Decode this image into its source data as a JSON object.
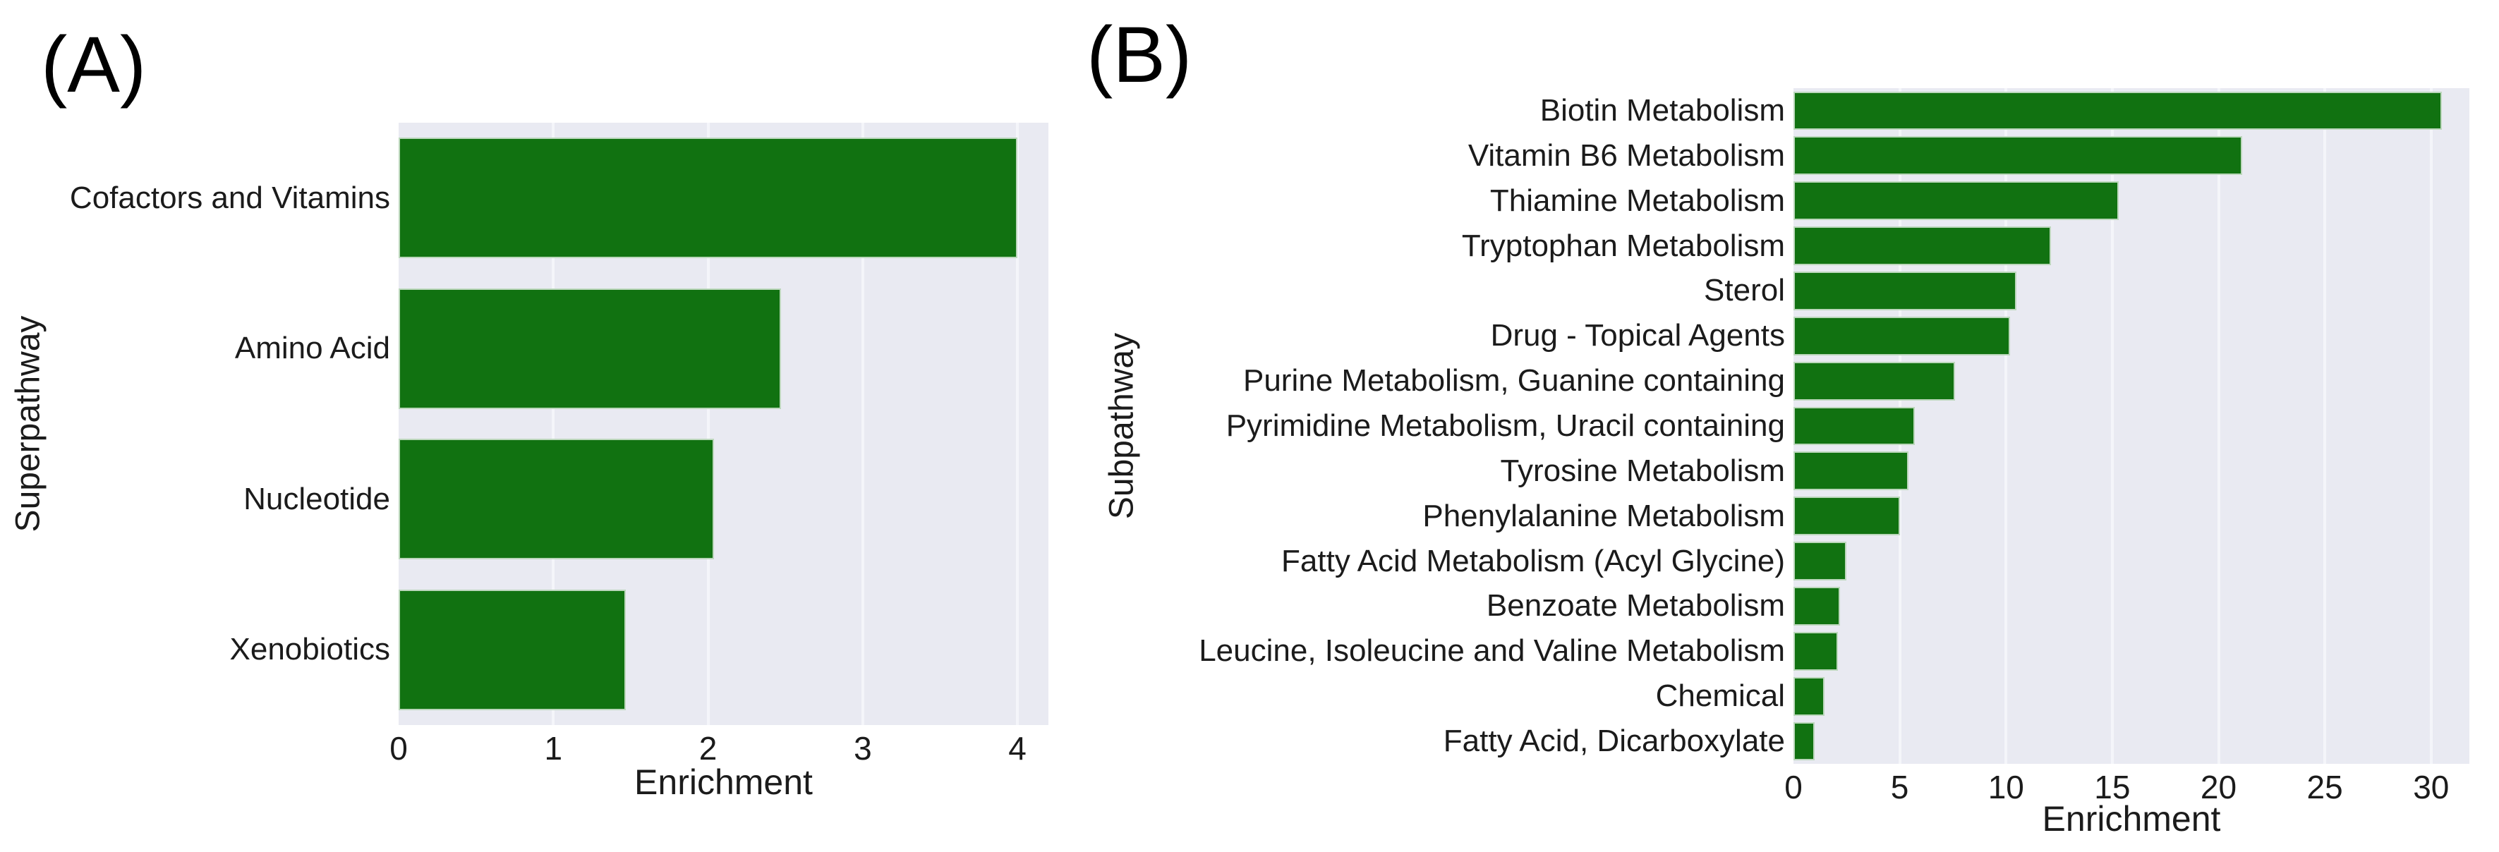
{
  "colors": {
    "bar": "#117211",
    "bar_edge": "rgba(246,250,246,0.75)",
    "plot_bg": "#e9eaf2",
    "grid_line": "#f4f5fa",
    "text": "#1b1b1b",
    "page_bg": "#ffffff"
  },
  "chart_data": [
    {
      "type": "bar",
      "orientation": "horizontal",
      "panel_label": "(A)",
      "title": "",
      "xlabel": "Enrichment",
      "ylabel": "Superpathway",
      "categories": [
        "Cofactors and Vitamins",
        "Amino Acid",
        "Nucleotide",
        "Xenobiotics"
      ],
      "values": [
        4.0,
        2.47,
        2.04,
        1.47
      ],
      "x_ticks": [
        0,
        1,
        2,
        3,
        4
      ],
      "xlim": [
        0,
        4.2
      ],
      "grid": true,
      "legend": false
    },
    {
      "type": "bar",
      "orientation": "horizontal",
      "panel_label": "(B)",
      "title": "",
      "xlabel": "Enrichment",
      "ylabel": "Subpathway",
      "categories": [
        "Biotin Metabolism",
        "Vitamin B6 Metabolism",
        "Thiamine Metabolism",
        "Tryptophan Metabolism",
        "Sterol",
        "Drug - Topical Agents",
        "Purine Metabolism, Guanine containing",
        "Pyrimidine Metabolism, Uracil containing",
        "Tyrosine Metabolism",
        "Phenylalanine Metabolism",
        "Fatty Acid Metabolism (Acyl Glycine)",
        "Benzoate Metabolism",
        "Leucine, Isoleucine and Valine Metabolism",
        "Chemical",
        "Fatty Acid, Dicarboxylate"
      ],
      "values": [
        30.5,
        21.1,
        15.3,
        12.1,
        10.5,
        10.2,
        7.6,
        5.7,
        5.4,
        5.0,
        2.5,
        2.2,
        2.1,
        1.45,
        1.0
      ],
      "x_ticks": [
        0,
        5,
        10,
        15,
        20,
        25,
        30
      ],
      "xlim": [
        0,
        31.8
      ],
      "grid": true,
      "legend": false
    }
  ]
}
